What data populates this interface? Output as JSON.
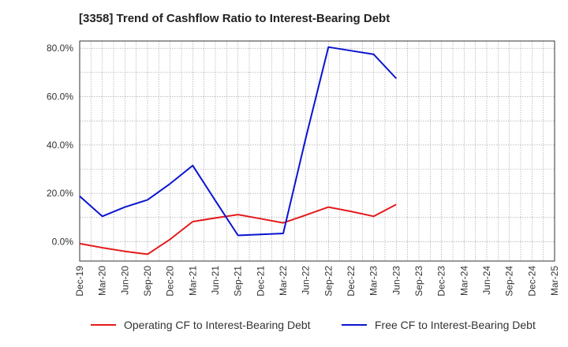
{
  "chart_data": {
    "type": "line",
    "title": "[3358]  Trend of Cashflow Ratio to Interest-Bearing Debt",
    "xlabel": "",
    "ylabel": "",
    "categories": [
      "Dec-19",
      "Mar-20",
      "Jun-20",
      "Sep-20",
      "Dec-20",
      "Mar-21",
      "Jun-21",
      "Sep-21",
      "Dec-21",
      "Mar-22",
      "Jun-22",
      "Sep-22",
      "Dec-22",
      "Mar-23",
      "Jun-23",
      "Sep-23",
      "Dec-23",
      "Mar-24",
      "Jun-24",
      "Sep-24",
      "Dec-24",
      "Mar-25"
    ],
    "y_ticks": [
      "0.0%",
      "20.0%",
      "40.0%",
      "60.0%",
      "80.0%"
    ],
    "ylim": [
      -8,
      83
    ],
    "grid": true,
    "legend_position": "bottom",
    "series": [
      {
        "name": "Operating CF to Interest-Bearing Debt",
        "color": "#e41a1c",
        "values": [
          -0.8,
          -2.5,
          -4.0,
          -5.2,
          1.0,
          8.3,
          9.8,
          11.2,
          9.5,
          7.8,
          11.0,
          14.3,
          12.5,
          10.5,
          15.4,
          null,
          null,
          null,
          null,
          null,
          null,
          null
        ]
      },
      {
        "name": "Free CF to Interest-Bearing Debt",
        "color": "#0a14d0",
        "values": [
          18.8,
          10.5,
          14.3,
          17.3,
          24.0,
          31.5,
          17.0,
          2.6,
          3.0,
          3.4,
          43.0,
          80.5,
          79.0,
          77.5,
          67.5,
          null,
          null,
          null,
          null,
          null,
          null,
          null
        ]
      }
    ]
  }
}
